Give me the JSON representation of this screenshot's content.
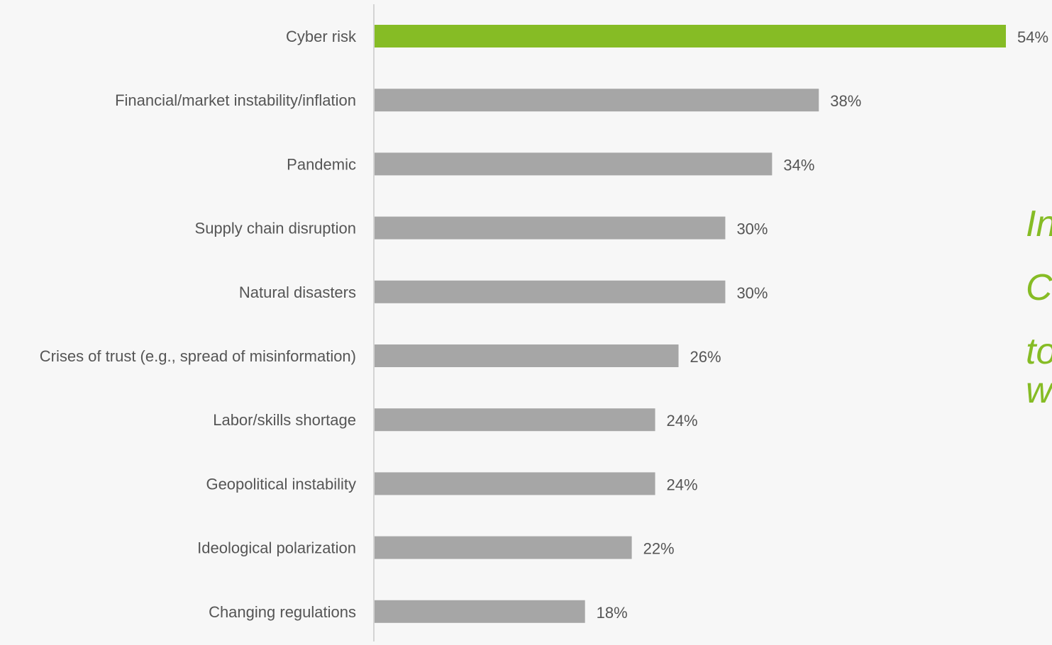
{
  "chart_data": {
    "type": "bar",
    "orientation": "horizontal",
    "categories": [
      "Cyber risk",
      "Financial/market instability/inflation",
      "Pandemic",
      "Supply chain disruption",
      "Natural disasters",
      "Crises of trust (e.g., spread of misinformation)",
      "Labor/skills shortage",
      "Geopolitical instability",
      "Ideological polarization",
      "Changing regulations"
    ],
    "values": [
      54,
      38,
      34,
      30,
      30,
      26,
      24,
      24,
      22,
      18
    ],
    "value_labels": [
      "54%",
      "38%",
      "34%",
      "30%",
      "30%",
      "26%",
      "24%",
      "24%",
      "22%",
      "18%"
    ],
    "highlight_index": 0,
    "xlim": [
      0,
      54
    ],
    "grid": false,
    "legend": "none",
    "title": "",
    "xlabel": "",
    "ylabel": ""
  },
  "side_text": [
    "In",
    "C",
    "to",
    "w"
  ],
  "colors": {
    "highlight_bar": "#86bc25",
    "bar": "#a6a6a6",
    "axis": "#c8c8c8",
    "text": "#555555",
    "side_text": "#86bc25",
    "background": "#f7f7f7"
  }
}
